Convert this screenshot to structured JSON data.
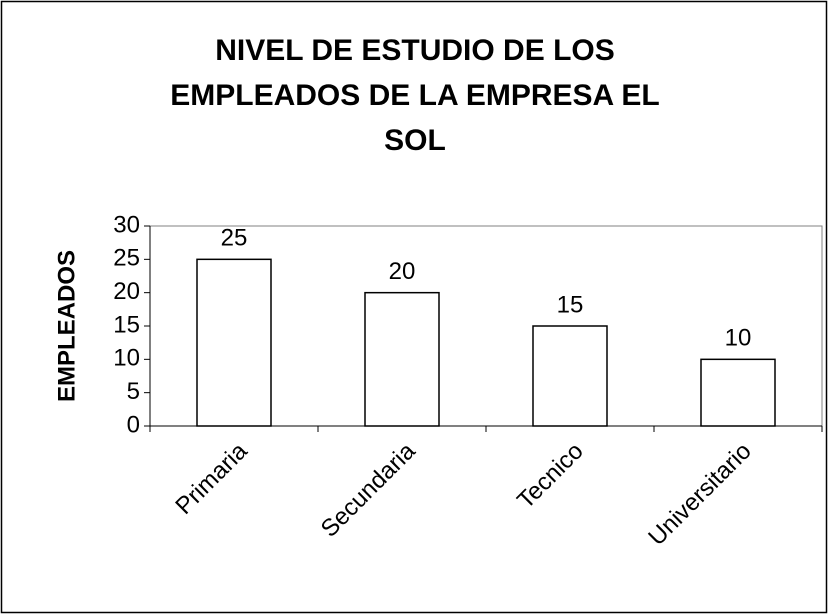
{
  "chart_data": {
    "type": "bar",
    "title": "NIVEL DE ESTUDIO DE LOS EMPLEADOS DE LA EMPRESA EL SOL",
    "y_label": "EMPLEADOS",
    "categories": [
      "Primaria",
      "Secundaria",
      "Tecnico",
      "Universitario"
    ],
    "values": [
      25,
      20,
      15,
      10
    ],
    "color": "#ffffff",
    "ylim": [
      0,
      30
    ],
    "yticks": [
      0,
      5,
      10,
      15,
      20,
      25,
      30
    ],
    "data_labels": true
  }
}
